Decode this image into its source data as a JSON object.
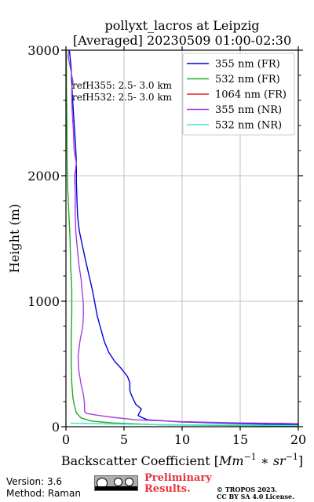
{
  "chart_data": {
    "type": "line",
    "title_line1": "pollyxt_lacros at Leipzig",
    "title_line2": "[Averaged] 20230509 01:00-02:30",
    "xlabel_prefix": "Backscatter Coefficient [",
    "xlabel_math": "Mm",
    "xlabel_sup1": "−1",
    "xlabel_mid": " ∗ sr",
    "xlabel_sup2": "−1",
    "xlabel_suffix": "]",
    "ylabel": "Height (m)",
    "xlim": [
      0,
      20
    ],
    "ylim": [
      0,
      3000
    ],
    "x_ticks": [
      0,
      5,
      10,
      15,
      20
    ],
    "x_tick_labels": [
      "0",
      "5",
      "10",
      "15",
      "20"
    ],
    "y_ticks": [
      0,
      1000,
      2000,
      3000
    ],
    "y_tick_labels": [
      "0",
      "1000",
      "2000",
      "3000"
    ],
    "grid": true,
    "legend_position": "top-right",
    "annotations": [
      "refH355:  2.5- 3.0 km",
      "refH532:  2.5- 3.0 km"
    ],
    "series": [
      {
        "name": "355 nm (FR)",
        "color": "#0000dd",
        "points": [
          [
            20,
            15
          ],
          [
            15,
            25
          ],
          [
            10,
            38
          ],
          [
            7,
            55
          ],
          [
            6.5,
            75
          ],
          [
            6.2,
            90
          ],
          [
            6.5,
            140
          ],
          [
            6.0,
            180
          ],
          [
            5.8,
            220
          ],
          [
            5.6,
            260
          ],
          [
            5.5,
            290
          ],
          [
            5.5,
            350
          ],
          [
            5.3,
            400
          ],
          [
            4.8,
            460
          ],
          [
            4.2,
            520
          ],
          [
            3.7,
            590
          ],
          [
            3.3,
            680
          ],
          [
            3.0,
            780
          ],
          [
            2.7,
            880
          ],
          [
            2.5,
            980
          ],
          [
            2.3,
            1080
          ],
          [
            2.0,
            1200
          ],
          [
            1.7,
            1320
          ],
          [
            1.4,
            1450
          ],
          [
            1.15,
            1560
          ],
          [
            1.0,
            1680
          ],
          [
            0.95,
            1800
          ],
          [
            0.9,
            1950
          ],
          [
            0.9,
            2100
          ],
          [
            0.85,
            2200
          ],
          [
            0.75,
            2350
          ],
          [
            0.65,
            2500
          ],
          [
            0.55,
            2650
          ],
          [
            0.5,
            2750
          ],
          [
            0.45,
            2850
          ],
          [
            0.35,
            2950
          ],
          [
            0.3,
            3000
          ]
        ]
      },
      {
        "name": "532 nm (FR)",
        "color": "#22aa22",
        "points": [
          [
            20,
            5
          ],
          [
            8,
            15
          ],
          [
            4,
            30
          ],
          [
            2.2,
            45
          ],
          [
            1.3,
            70
          ],
          [
            0.9,
            110
          ],
          [
            0.75,
            160
          ],
          [
            0.6,
            230
          ],
          [
            0.5,
            350
          ],
          [
            0.45,
            500
          ],
          [
            0.45,
            700
          ],
          [
            0.5,
            900
          ],
          [
            0.5,
            1100
          ],
          [
            0.4,
            1300
          ],
          [
            0.35,
            1500
          ],
          [
            0.25,
            1700
          ],
          [
            0.15,
            1900
          ],
          [
            0.1,
            2100
          ],
          [
            0.08,
            2400
          ],
          [
            0.05,
            2700
          ],
          [
            0.04,
            3000
          ]
        ]
      },
      {
        "name": "1064 nm (FR)",
        "color": "#dd2222",
        "points": []
      },
      {
        "name": "355 nm (NR)",
        "color": "#a040e0",
        "points": [
          [
            20,
            25
          ],
          [
            15,
            30
          ],
          [
            10,
            40
          ],
          [
            6,
            55
          ],
          [
            4,
            75
          ],
          [
            2.8,
            90
          ],
          [
            1.8,
            105
          ],
          [
            1.6,
            120
          ],
          [
            1.6,
            180
          ],
          [
            1.5,
            260
          ],
          [
            1.3,
            340
          ],
          [
            1.1,
            450
          ],
          [
            1.05,
            560
          ],
          [
            1.2,
            680
          ],
          [
            1.45,
            800
          ],
          [
            1.5,
            900
          ],
          [
            1.5,
            980
          ],
          [
            1.4,
            1080
          ],
          [
            1.3,
            1180
          ],
          [
            1.1,
            1300
          ],
          [
            1.0,
            1400
          ],
          [
            0.85,
            1550
          ],
          [
            0.8,
            1700
          ],
          [
            0.8,
            1850
          ],
          [
            0.75,
            2000
          ],
          [
            0.9,
            2100
          ],
          [
            0.7,
            2200
          ],
          [
            0.65,
            2350
          ],
          [
            0.55,
            2500
          ],
          [
            0.5,
            2600
          ],
          [
            0.5,
            2700
          ],
          [
            0.6,
            2750
          ],
          [
            0.5,
            2800
          ],
          [
            0.3,
            2900
          ],
          [
            0.2,
            2950
          ],
          [
            0.25,
            3000
          ]
        ]
      },
      {
        "name": "532 nm (NR)",
        "color": "#40e8d0",
        "points": [
          [
            20,
            10
          ],
          [
            10,
            15
          ],
          [
            5,
            20
          ],
          [
            2,
            25
          ],
          [
            0.4,
            28
          ]
        ]
      }
    ]
  },
  "footer": {
    "version": "Version: 3.6",
    "method": "Method: Raman",
    "preliminary_line1": "Preliminary",
    "preliminary_line2": "Results.",
    "copyright_line1": "© TROPOS 2023.",
    "copyright_line2": "CC BY SA 4.0 License."
  }
}
